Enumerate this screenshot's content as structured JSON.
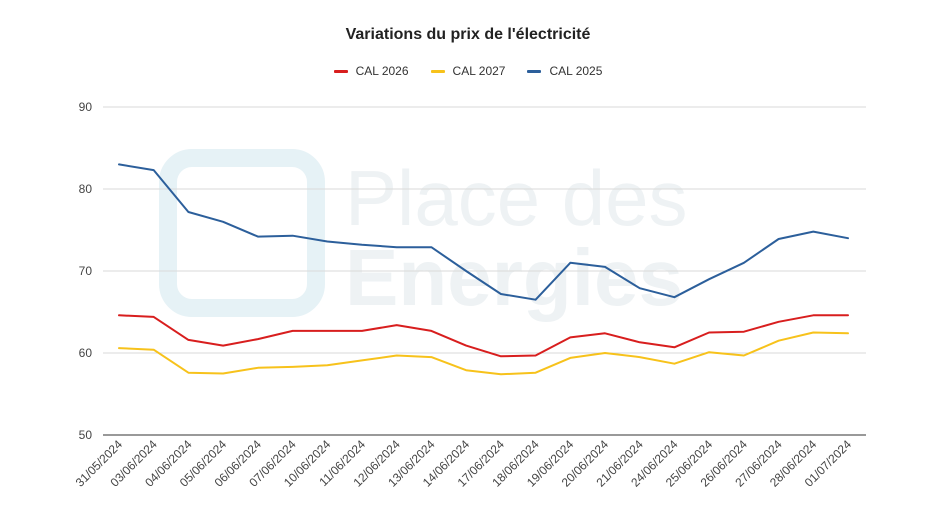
{
  "chart_data": {
    "type": "line",
    "title": "Variations du prix de l'électricité",
    "xlabel": "",
    "ylabel": "",
    "ylim": [
      50,
      90
    ],
    "yticks": [
      50,
      60,
      70,
      80,
      90
    ],
    "grid": true,
    "legend_position": "top",
    "watermark": {
      "line1": "Place des",
      "line2": "Energies"
    },
    "x": [
      "31/05/2024",
      "03/06/2024",
      "04/06/2024",
      "05/06/2024",
      "06/06/2024",
      "07/06/2024",
      "10/06/2024",
      "11/06/2024",
      "12/06/2024",
      "13/06/2024",
      "14/06/2024",
      "17/06/2024",
      "18/06/2024",
      "19/06/2024",
      "20/06/2024",
      "21/06/2024",
      "24/06/2024",
      "25/06/2024",
      "26/06/2024",
      "27/06/2024",
      "28/06/2024",
      "01/07/2024"
    ],
    "series": [
      {
        "name": "CAL 2026",
        "color": "#d81e1e",
        "values": [
          64.6,
          64.4,
          61.6,
          60.9,
          61.7,
          62.7,
          62.7,
          62.7,
          63.4,
          62.7,
          60.9,
          59.6,
          59.7,
          61.9,
          62.4,
          61.3,
          60.7,
          62.5,
          62.6,
          63.8,
          64.6,
          64.6
        ]
      },
      {
        "name": "CAL 2027",
        "color": "#f7c21b",
        "values": [
          60.6,
          60.4,
          57.6,
          57.5,
          58.2,
          58.3,
          58.5,
          59.1,
          59.7,
          59.5,
          57.9,
          57.4,
          57.6,
          59.4,
          60.0,
          59.5,
          58.7,
          60.1,
          59.7,
          61.5,
          62.5,
          62.4
        ]
      },
      {
        "name": "CAL 2025",
        "color": "#2c5f9b",
        "values": [
          83.0,
          82.3,
          77.2,
          76.0,
          74.2,
          74.3,
          73.6,
          73.2,
          72.9,
          72.9,
          70.0,
          67.2,
          66.5,
          71.0,
          70.5,
          67.9,
          66.8,
          69.0,
          71.0,
          73.9,
          74.8,
          74.0
        ]
      }
    ]
  }
}
